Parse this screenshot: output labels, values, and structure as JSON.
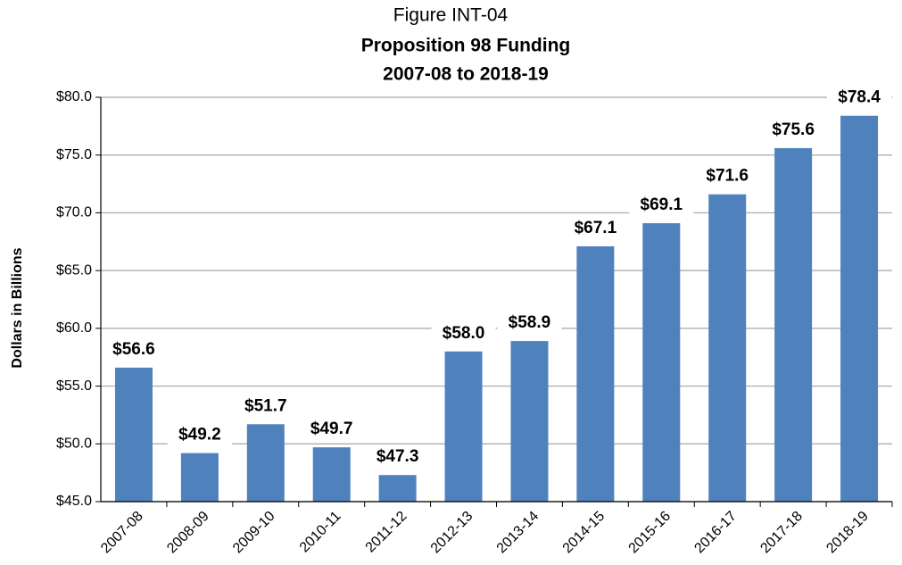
{
  "chart_data": {
    "type": "bar",
    "title": "Figure INT-04",
    "subtitle": [
      "Proposition 98 Funding",
      "2007-08 to 2018-19"
    ],
    "y_axis_label": "Dollars in Billions",
    "categories": [
      "2007-08",
      "2008-09",
      "2009-10",
      "2010-11",
      "2011-12",
      "2012-13",
      "2013-14",
      "2014-15",
      "2015-16",
      "2016-17",
      "2017-18",
      "2018-19"
    ],
    "values": [
      56.6,
      49.2,
      51.7,
      49.7,
      47.3,
      58.0,
      58.9,
      67.1,
      69.1,
      71.6,
      75.6,
      78.4
    ],
    "value_labels": [
      "$56.6",
      "$49.2",
      "$51.7",
      "$49.7",
      "$47.3",
      "$58.0",
      "$58.9",
      "$67.1",
      "$69.1",
      "$71.6",
      "$75.6",
      "$78.4"
    ],
    "color": "#4f81bd",
    "ylim": [
      45,
      80
    ],
    "yticks": [
      {
        "value": 45,
        "label": "$45.0"
      },
      {
        "value": 50,
        "label": "$50.0"
      },
      {
        "value": 55,
        "label": "$55.0"
      },
      {
        "value": 60,
        "label": "$60.0"
      },
      {
        "value": 65,
        "label": "$65.0"
      },
      {
        "value": 70,
        "label": "$70.0"
      },
      {
        "value": 75,
        "label": "$75.0"
      },
      {
        "value": 80,
        "label": "$80.0"
      }
    ],
    "grid": true
  }
}
